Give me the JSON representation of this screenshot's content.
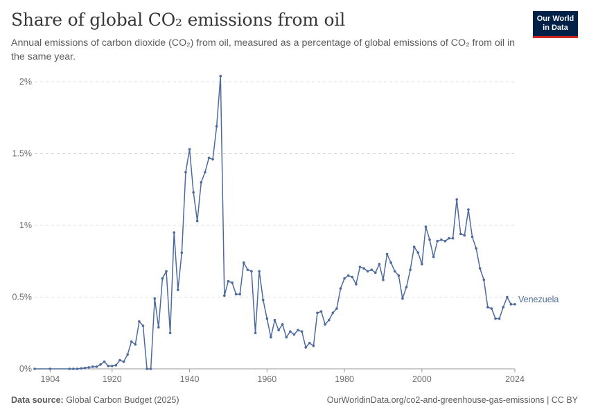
{
  "header": {
    "title": "Share of global CO₂ emissions from oil",
    "subtitle": "Annual emissions of carbon dioxide (CO₂) from oil, measured as a percentage of global emissions of CO₂ from oil in the same year.",
    "logo_line1": "Our World",
    "logo_line2": "in Data"
  },
  "footer": {
    "source_label": "Data source:",
    "source_value": "Global Carbon Budget (2025)",
    "url": "OurWorldinData.org/co2-and-greenhouse-gas-emissions | CC BY"
  },
  "colors": {
    "series": "#4c6a9c",
    "logo_bg": "#002147",
    "logo_accent": "#ce261e"
  },
  "chart_data": {
    "type": "line",
    "title": "Share of global CO₂ emissions from oil",
    "xlim": [
      1900,
      2024
    ],
    "ylim": [
      0,
      2
    ],
    "x_ticks": [
      {
        "value": 1904,
        "label": "1904"
      },
      {
        "value": 1920,
        "label": "1920"
      },
      {
        "value": 1940,
        "label": "1940"
      },
      {
        "value": 1960,
        "label": "1960"
      },
      {
        "value": 1980,
        "label": "1980"
      },
      {
        "value": 2000,
        "label": "2000"
      },
      {
        "value": 2024,
        "label": "2024"
      }
    ],
    "y_ticks": [
      {
        "value": 0,
        "label": "0%"
      },
      {
        "value": 0.5,
        "label": "0.5%"
      },
      {
        "value": 1,
        "label": "1%"
      },
      {
        "value": 1.5,
        "label": "1.5%"
      },
      {
        "value": 2,
        "label": "2%"
      }
    ],
    "grid": "horizontal dashed",
    "series": [
      {
        "name": "Venezuela",
        "x": [
          1900,
          1904,
          1909,
          1910,
          1911,
          1912,
          1913,
          1914,
          1915,
          1916,
          1917,
          1918,
          1919,
          1920,
          1921,
          1922,
          1923,
          1924,
          1925,
          1926,
          1927,
          1928,
          1929,
          1930,
          1931,
          1932,
          1933,
          1934,
          1935,
          1936,
          1937,
          1938,
          1939,
          1940,
          1941,
          1942,
          1943,
          1944,
          1945,
          1946,
          1947,
          1948,
          1949,
          1950,
          1951,
          1952,
          1953,
          1954,
          1955,
          1956,
          1957,
          1958,
          1959,
          1960,
          1961,
          1962,
          1963,
          1964,
          1965,
          1966,
          1967,
          1968,
          1969,
          1970,
          1971,
          1972,
          1973,
          1974,
          1975,
          1976,
          1977,
          1978,
          1979,
          1980,
          1981,
          1982,
          1983,
          1984,
          1985,
          1986,
          1987,
          1988,
          1989,
          1990,
          1991,
          1992,
          1993,
          1994,
          1995,
          1996,
          1997,
          1998,
          1999,
          2000,
          2001,
          2002,
          2003,
          2004,
          2005,
          2006,
          2007,
          2008,
          2009,
          2010,
          2011,
          2012,
          2013,
          2014,
          2015,
          2016,
          2017,
          2018,
          2019,
          2020,
          2021,
          2022,
          2023,
          2024
        ],
        "y": [
          0,
          0,
          0,
          0,
          0,
          0.003,
          0.006,
          0.01,
          0.015,
          0.015,
          0.03,
          0.05,
          0.02,
          0.02,
          0.025,
          0.06,
          0.05,
          0.1,
          0.19,
          0.17,
          0.33,
          0.3,
          0,
          0,
          0.49,
          0.29,
          0.63,
          0.68,
          0.25,
          0.95,
          0.55,
          0.81,
          1.37,
          1.53,
          1.23,
          1.03,
          1.3,
          1.37,
          1.47,
          1.46,
          1.69,
          2.04,
          0.51,
          0.61,
          0.6,
          0.52,
          0.52,
          0.74,
          0.69,
          0.68,
          0.25,
          0.68,
          0.48,
          0.35,
          0.22,
          0.34,
          0.27,
          0.31,
          0.22,
          0.26,
          0.24,
          0.27,
          0.26,
          0.15,
          0.18,
          0.16,
          0.39,
          0.4,
          0.31,
          0.34,
          0.39,
          0.42,
          0.56,
          0.63,
          0.65,
          0.64,
          0.59,
          0.71,
          0.7,
          0.68,
          0.69,
          0.67,
          0.73,
          0.62,
          0.8,
          0.74,
          0.68,
          0.65,
          0.49,
          0.57,
          0.69,
          0.85,
          0.81,
          0.73,
          0.99,
          0.9,
          0.78,
          0.89,
          0.9,
          0.89,
          0.91,
          0.91,
          1.18,
          0.94,
          0.93,
          1.11,
          0.92,
          0.84,
          0.7,
          0.62,
          0.43,
          0.42,
          0.35,
          0.35,
          0.43,
          0.5,
          0.45,
          0.45
        ]
      }
    ]
  }
}
